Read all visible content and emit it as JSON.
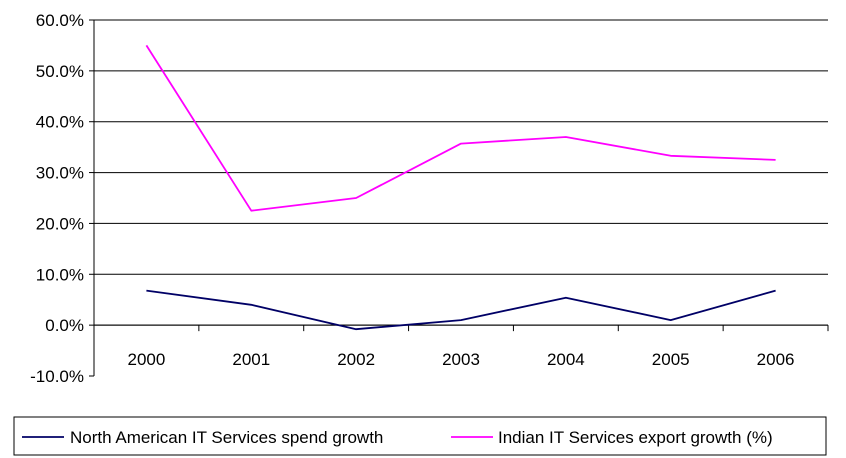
{
  "chart_data": {
    "type": "line",
    "title": "",
    "xlabel": "",
    "ylabel": "",
    "categories": [
      "2000",
      "2001",
      "2002",
      "2003",
      "2004",
      "2005",
      "2006"
    ],
    "ylim": [
      -0.1,
      0.6
    ],
    "y_ticks": [
      0.6,
      0.5,
      0.4,
      0.3,
      0.2,
      0.1,
      0.0,
      -0.1
    ],
    "y_tick_labels": [
      "60.0%",
      "50.0%",
      "40.0%",
      "30.0%",
      "20.0%",
      "10.0%",
      "0.0%",
      "-10.0%"
    ],
    "grid": "horizontal",
    "legend_position": "bottom",
    "series": [
      {
        "name": "North American IT Services spend growth",
        "color": "#000066",
        "values": [
          0.068,
          0.04,
          -0.008,
          0.01,
          0.054,
          0.01,
          0.068
        ]
      },
      {
        "name": "Indian IT Services export growth (%)",
        "color": "#ff00ff",
        "values": [
          0.55,
          0.225,
          0.25,
          0.357,
          0.37,
          0.333,
          0.325
        ]
      }
    ]
  }
}
